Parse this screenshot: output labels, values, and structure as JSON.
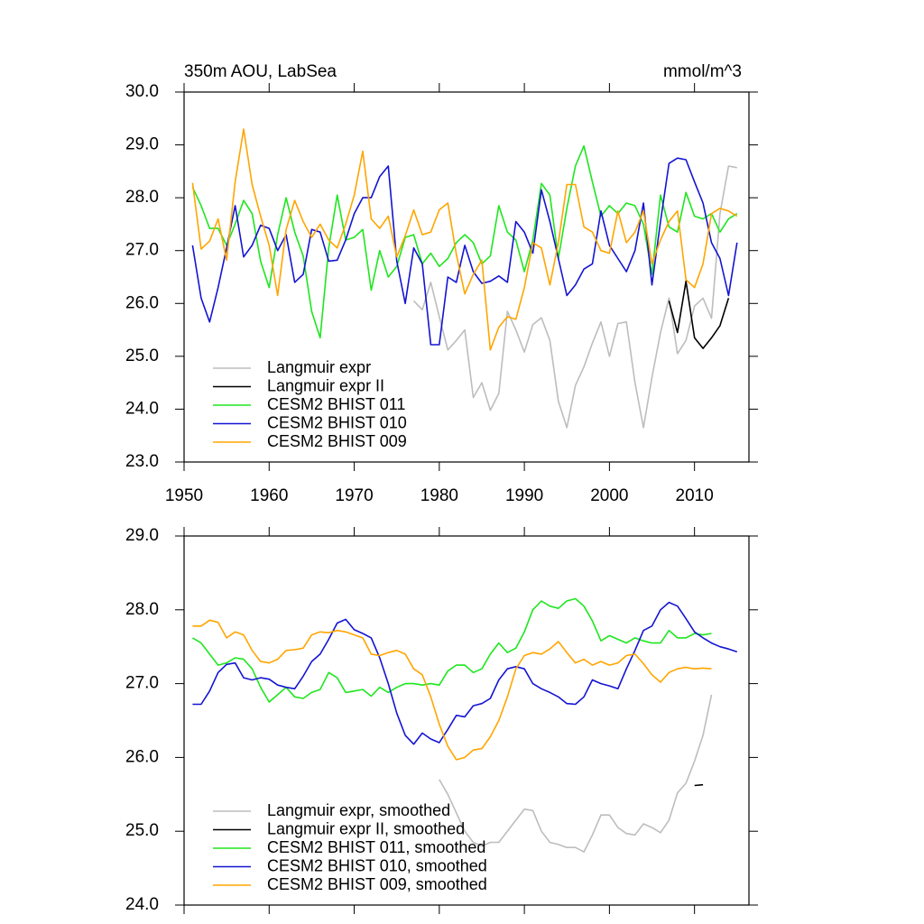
{
  "chart_data": [
    {
      "type": "line",
      "title": "350m AOU, LabSea",
      "units": "mmol/m^3",
      "legend": "lower left",
      "xlim": [
        1950,
        2016.4
      ],
      "xticks": [
        1950,
        1960,
        1970,
        1980,
        1990,
        2000,
        2010
      ],
      "ylim": [
        23,
        30
      ],
      "yticks": [
        {
          "value": 23,
          "label": "23.0"
        },
        {
          "value": 24,
          "label": "24.0"
        },
        {
          "value": 25,
          "label": "25.0"
        },
        {
          "value": 26,
          "label": "26.0"
        },
        {
          "value": 27,
          "label": "27.0"
        },
        {
          "value": 28,
          "label": "28.0"
        },
        {
          "value": 29,
          "label": "29.0"
        },
        {
          "value": 30,
          "label": "30.0"
        }
      ],
      "x": [
        1951,
        1952,
        1953,
        1954,
        1955,
        1956,
        1957,
        1958,
        1959,
        1960,
        1961,
        1962,
        1963,
        1964,
        1965,
        1966,
        1967,
        1968,
        1969,
        1970,
        1971,
        1972,
        1973,
        1974,
        1975,
        1976,
        1977,
        1978,
        1979,
        1980,
        1981,
        1982,
        1983,
        1984,
        1985,
        1986,
        1987,
        1988,
        1989,
        1990,
        1991,
        1992,
        1993,
        1994,
        1995,
        1996,
        1997,
        1998,
        1999,
        2000,
        2001,
        2002,
        2003,
        2004,
        2005,
        2006,
        2007,
        2008,
        2009,
        2010,
        2011,
        2012,
        2013,
        2014,
        2015
      ],
      "series": [
        {
          "name": "Langmuir expr",
          "color": "#bdbdbd",
          "values": [
            null,
            null,
            null,
            null,
            null,
            null,
            null,
            null,
            null,
            null,
            null,
            null,
            null,
            null,
            null,
            null,
            null,
            null,
            null,
            null,
            null,
            null,
            null,
            null,
            null,
            null,
            26.05,
            25.88,
            26.4,
            25.75,
            25.12,
            25.3,
            25.5,
            24.22,
            24.5,
            23.98,
            24.3,
            25.85,
            25.5,
            25.08,
            25.6,
            25.73,
            25.3,
            24.15,
            23.65,
            24.45,
            24.8,
            25.25,
            25.65,
            25.0,
            25.62,
            25.65,
            24.5,
            23.65,
            24.6,
            25.45,
            26.1,
            25.05,
            25.3,
            25.95,
            26.1,
            25.72,
            27.7,
            28.6,
            28.57
          ]
        },
        {
          "name": "Langmuir expr II",
          "color": "#000000",
          "values": [
            null,
            null,
            null,
            null,
            null,
            null,
            null,
            null,
            null,
            null,
            null,
            null,
            null,
            null,
            null,
            null,
            null,
            null,
            null,
            null,
            null,
            null,
            null,
            null,
            null,
            null,
            null,
            null,
            null,
            null,
            null,
            null,
            null,
            null,
            null,
            null,
            null,
            null,
            null,
            null,
            null,
            null,
            null,
            null,
            null,
            null,
            null,
            null,
            null,
            null,
            null,
            null,
            null,
            null,
            null,
            null,
            26.05,
            25.45,
            26.42,
            25.35,
            25.15,
            25.35,
            25.58,
            26.1,
            null
          ]
        },
        {
          "name": "CESM2 BHIST 011",
          "color": "#1ee61e",
          "values": [
            28.2,
            27.85,
            27.42,
            27.42,
            27.1,
            27.5,
            27.95,
            27.7,
            26.8,
            26.3,
            27.3,
            28.0,
            27.35,
            26.9,
            25.85,
            25.35,
            27.05,
            28.05,
            27.2,
            27.25,
            27.4,
            26.25,
            27.0,
            26.5,
            26.7,
            27.25,
            27.3,
            26.75,
            26.95,
            26.7,
            26.85,
            27.15,
            27.3,
            27.15,
            26.75,
            26.9,
            27.85,
            27.35,
            27.2,
            26.6,
            27.2,
            28.27,
            28.05,
            26.85,
            27.8,
            28.6,
            28.98,
            28.3,
            27.65,
            27.85,
            27.7,
            27.9,
            27.85,
            27.5,
            26.55,
            28.05,
            27.45,
            27.35,
            28.1,
            27.65,
            27.6,
            27.7,
            27.35,
            27.6,
            27.7
          ]
        },
        {
          "name": "CESM2 BHIST 010",
          "color": "#1414d2",
          "values": [
            27.1,
            26.1,
            25.65,
            26.3,
            27.05,
            27.85,
            26.88,
            27.1,
            27.48,
            27.42,
            27.0,
            27.3,
            26.4,
            26.55,
            27.4,
            27.35,
            26.8,
            26.82,
            27.2,
            27.7,
            28.0,
            28.0,
            28.4,
            28.6,
            26.8,
            26.0,
            27.05,
            26.75,
            25.22,
            25.22,
            26.5,
            26.4,
            27.1,
            26.6,
            26.38,
            26.42,
            26.52,
            26.4,
            27.55,
            27.35,
            26.95,
            28.15,
            27.55,
            26.85,
            26.15,
            26.35,
            26.65,
            26.75,
            27.75,
            27.1,
            26.85,
            26.6,
            27.0,
            27.9,
            26.35,
            27.55,
            28.65,
            28.75,
            28.72,
            28.3,
            27.9,
            27.15,
            26.85,
            26.15,
            27.15
          ]
        },
        {
          "name": "CESM2 BHIST 009",
          "color": "#ffa500",
          "values": [
            28.28,
            27.03,
            27.18,
            27.6,
            26.82,
            28.3,
            29.3,
            28.25,
            27.65,
            27.1,
            26.15,
            27.4,
            27.95,
            27.55,
            27.25,
            27.5,
            27.2,
            27.05,
            27.5,
            28.05,
            28.88,
            27.6,
            27.42,
            27.65,
            26.88,
            27.28,
            27.77,
            27.3,
            27.35,
            27.77,
            27.9,
            26.93,
            26.18,
            26.55,
            26.82,
            25.12,
            25.55,
            25.75,
            25.7,
            26.3,
            27.15,
            27.05,
            26.35,
            27.15,
            28.25,
            28.25,
            27.45,
            27.35,
            27.0,
            26.95,
            27.75,
            27.15,
            27.35,
            27.75,
            26.75,
            27.2,
            27.55,
            27.75,
            26.45,
            26.3,
            26.75,
            27.7,
            27.8,
            27.75,
            27.65
          ]
        }
      ]
    },
    {
      "type": "line",
      "legend": "lower left",
      "xlim": [
        1950,
        2016.4
      ],
      "xticks": [
        1950,
        1960,
        1970,
        1980,
        1990,
        2000,
        2010
      ],
      "ylim": [
        24,
        29
      ],
      "yticks": [
        {
          "value": 24,
          "label": "24.0"
        },
        {
          "value": 25,
          "label": "25.0"
        },
        {
          "value": 26,
          "label": "26.0"
        },
        {
          "value": 27,
          "label": "27.0"
        },
        {
          "value": 28,
          "label": "28.0"
        },
        {
          "value": 29,
          "label": "29.0"
        }
      ],
      "x": [
        1951,
        1952,
        1953,
        1954,
        1955,
        1956,
        1957,
        1958,
        1959,
        1960,
        1961,
        1962,
        1963,
        1964,
        1965,
        1966,
        1967,
        1968,
        1969,
        1970,
        1971,
        1972,
        1973,
        1974,
        1975,
        1976,
        1977,
        1978,
        1979,
        1980,
        1981,
        1982,
        1983,
        1984,
        1985,
        1986,
        1987,
        1988,
        1989,
        1990,
        1991,
        1992,
        1993,
        1994,
        1995,
        1996,
        1997,
        1998,
        1999,
        2000,
        2001,
        2002,
        2003,
        2004,
        2005,
        2006,
        2007,
        2008,
        2009,
        2010,
        2011,
        2012,
        2013,
        2014,
        2015
      ],
      "series": [
        {
          "name": "Langmuir expr, smoothed",
          "color": "#bdbdbd",
          "values": [
            null,
            null,
            null,
            null,
            null,
            null,
            null,
            null,
            null,
            null,
            null,
            null,
            null,
            null,
            null,
            null,
            null,
            null,
            null,
            null,
            null,
            null,
            null,
            null,
            null,
            null,
            null,
            null,
            null,
            25.7,
            25.5,
            25.25,
            25.0,
            24.85,
            24.8,
            24.85,
            24.85,
            25.0,
            25.15,
            25.3,
            25.28,
            25.0,
            24.85,
            24.82,
            24.78,
            24.78,
            24.72,
            24.95,
            25.22,
            25.22,
            25.05,
            24.97,
            24.95,
            25.1,
            25.05,
            24.98,
            25.15,
            25.52,
            25.65,
            25.95,
            26.3,
            26.85,
            null,
            null,
            null
          ]
        },
        {
          "name": "Langmuir expr II, smoothed",
          "color": "#000000",
          "values": [
            null,
            null,
            null,
            null,
            null,
            null,
            null,
            null,
            null,
            null,
            null,
            null,
            null,
            null,
            null,
            null,
            null,
            null,
            null,
            null,
            null,
            null,
            null,
            null,
            null,
            null,
            null,
            null,
            null,
            null,
            null,
            null,
            null,
            null,
            null,
            null,
            null,
            null,
            null,
            null,
            null,
            null,
            null,
            null,
            null,
            null,
            null,
            null,
            null,
            null,
            null,
            null,
            null,
            null,
            null,
            null,
            null,
            null,
            null,
            25.62,
            25.63,
            null,
            null,
            null,
            null
          ]
        },
        {
          "name": "CESM2 BHIST 011, smoothed",
          "color": "#1ee61e",
          "values": [
            27.62,
            27.55,
            27.4,
            27.25,
            27.28,
            27.35,
            27.33,
            27.2,
            26.95,
            26.75,
            26.85,
            26.95,
            26.82,
            26.8,
            26.88,
            26.92,
            27.15,
            27.08,
            26.88,
            26.9,
            26.92,
            26.83,
            26.95,
            26.88,
            26.95,
            27.0,
            27.0,
            26.98,
            27.0,
            26.98,
            27.17,
            27.25,
            27.25,
            27.15,
            27.2,
            27.4,
            27.55,
            27.42,
            27.48,
            27.7,
            28.0,
            28.12,
            28.05,
            28.02,
            28.12,
            28.15,
            28.05,
            27.85,
            27.58,
            27.65,
            27.6,
            27.55,
            27.62,
            27.58,
            27.55,
            27.55,
            27.72,
            27.62,
            27.62,
            27.68,
            27.66,
            27.68,
            null,
            null,
            null
          ]
        },
        {
          "name": "CESM2 BHIST 010, smoothed",
          "color": "#1414d2",
          "values": [
            26.72,
            26.72,
            26.9,
            27.15,
            27.26,
            27.28,
            27.08,
            27.05,
            27.08,
            27.06,
            26.98,
            26.95,
            26.93,
            27.1,
            27.3,
            27.4,
            27.6,
            27.82,
            27.87,
            27.73,
            27.68,
            27.62,
            27.35,
            27.0,
            26.6,
            26.3,
            26.18,
            26.33,
            26.25,
            26.2,
            26.38,
            26.57,
            26.55,
            26.7,
            26.73,
            26.8,
            27.05,
            27.2,
            27.23,
            27.2,
            27.0,
            26.93,
            26.88,
            26.82,
            26.73,
            26.72,
            26.82,
            27.05,
            27.0,
            26.97,
            26.93,
            27.2,
            27.45,
            27.72,
            27.78,
            28.0,
            28.1,
            28.05,
            27.88,
            27.7,
            27.62,
            27.55,
            27.5,
            27.47,
            27.43
          ]
        },
        {
          "name": "CESM2 BHIST 009, smoothed",
          "color": "#ffa500",
          "values": [
            27.78,
            27.78,
            27.86,
            27.83,
            27.62,
            27.7,
            27.66,
            27.45,
            27.3,
            27.28,
            27.33,
            27.45,
            27.46,
            27.48,
            27.66,
            27.7,
            27.69,
            27.72,
            27.7,
            27.66,
            27.62,
            27.4,
            27.38,
            27.42,
            27.45,
            27.4,
            27.2,
            27.12,
            26.82,
            26.45,
            26.15,
            25.97,
            26.0,
            26.1,
            26.12,
            26.28,
            26.5,
            26.82,
            27.2,
            27.38,
            27.42,
            27.4,
            27.47,
            27.57,
            27.42,
            27.28,
            27.33,
            27.25,
            27.3,
            27.25,
            27.28,
            27.38,
            27.4,
            27.27,
            27.12,
            27.02,
            27.15,
            27.2,
            27.22,
            27.2,
            27.21,
            27.2,
            null,
            null,
            null
          ]
        }
      ]
    }
  ]
}
